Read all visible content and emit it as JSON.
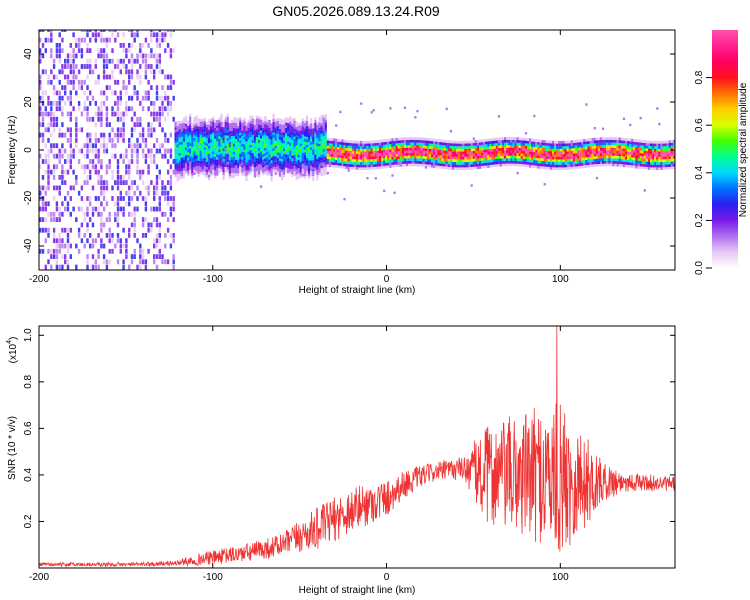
{
  "figure": {
    "title": "GN05.2026.089.13.24.R09"
  },
  "chart_data": [
    {
      "type": "heatmap",
      "name": "spectrogram",
      "title": "",
      "xlabel": "Height of straight line (km)",
      "ylabel": "Frequency (Hz)",
      "xlim": [
        -200,
        166
      ],
      "ylim": [
        -50,
        50
      ],
      "xticks": [
        -200,
        -100,
        0,
        100
      ],
      "yticks": [
        -40,
        -20,
        0,
        20,
        40
      ],
      "colorbar": {
        "label": "Normalized spectral amplitude",
        "range": [
          0,
          1
        ],
        "ticks": [
          0.0,
          0.2,
          0.4,
          0.6,
          0.8
        ],
        "tick_labels": [
          "0.0",
          "0.2",
          "0.4",
          "0.6",
          "0.8"
        ],
        "colormap": [
          "#ffffff",
          "#e6c8f5",
          "#b070f0",
          "#7a1ae8",
          "#2a1ff0",
          "#0070ff",
          "#00d8ff",
          "#00ff90",
          "#40ff00",
          "#d8ff00",
          "#ffd000",
          "#ff7000",
          "#ff1020",
          "#ff0060",
          "#ff2090",
          "#ff50b0"
        ]
      },
      "features": [
        {
          "region": "noise",
          "x_range": [
            -200,
            -122
          ],
          "freq_range": [
            -50,
            50
          ],
          "amplitude": 0.15
        },
        {
          "region": "signal_onset",
          "x_range": [
            -122,
            -35
          ],
          "freq_center": 0.5,
          "freq_halfwidth": 6,
          "amplitude": 0.45
        },
        {
          "region": "signal_stable",
          "x_range": [
            -35,
            166
          ],
          "freq_center": -2,
          "freq_halfwidth": 2.5,
          "amplitude": 0.95
        }
      ]
    },
    {
      "type": "line",
      "name": "snr",
      "title": "",
      "xlabel": "Height of straight line (km)",
      "ylabel": "SNR (10 * v/v)",
      "yscale_label": "(x10^4)",
      "yscale_base": "(x10",
      "yscale_exp": "4",
      "yscale_close": ")",
      "xlim": [
        -200,
        166
      ],
      "ylim": [
        0,
        1.04
      ],
      "xticks": [
        -200,
        -100,
        0,
        100
      ],
      "yticks": [
        0.2,
        0.4,
        0.6,
        0.8,
        1.0
      ],
      "color": "#ee3333",
      "envelope": [
        {
          "x": -200,
          "mean": 0.015,
          "spread": 0.008
        },
        {
          "x": -150,
          "mean": 0.015,
          "spread": 0.008
        },
        {
          "x": -122,
          "mean": 0.02,
          "spread": 0.01
        },
        {
          "x": -110,
          "mean": 0.035,
          "spread": 0.025
        },
        {
          "x": -100,
          "mean": 0.045,
          "spread": 0.03
        },
        {
          "x": -80,
          "mean": 0.065,
          "spread": 0.04
        },
        {
          "x": -60,
          "mean": 0.1,
          "spread": 0.05
        },
        {
          "x": -40,
          "mean": 0.17,
          "spread": 0.09
        },
        {
          "x": -20,
          "mean": 0.25,
          "spread": 0.1
        },
        {
          "x": 0,
          "mean": 0.3,
          "spread": 0.08
        },
        {
          "x": 10,
          "mean": 0.36,
          "spread": 0.06
        },
        {
          "x": 25,
          "mean": 0.41,
          "spread": 0.04
        },
        {
          "x": 45,
          "mean": 0.43,
          "spread": 0.05
        },
        {
          "x": 55,
          "mean": 0.4,
          "spread": 0.2
        },
        {
          "x": 70,
          "mean": 0.4,
          "spread": 0.25
        },
        {
          "x": 90,
          "mean": 0.4,
          "spread": 0.3
        },
        {
          "x": 100,
          "mean": 0.38,
          "spread": 0.33
        },
        {
          "x": 115,
          "mean": 0.37,
          "spread": 0.2
        },
        {
          "x": 125,
          "mean": 0.37,
          "spread": 0.08
        },
        {
          "x": 140,
          "mean": 0.37,
          "spread": 0.04
        },
        {
          "x": 166,
          "mean": 0.36,
          "spread": 0.03
        }
      ],
      "peak": {
        "x": 98,
        "y": 1.04
      }
    }
  ]
}
